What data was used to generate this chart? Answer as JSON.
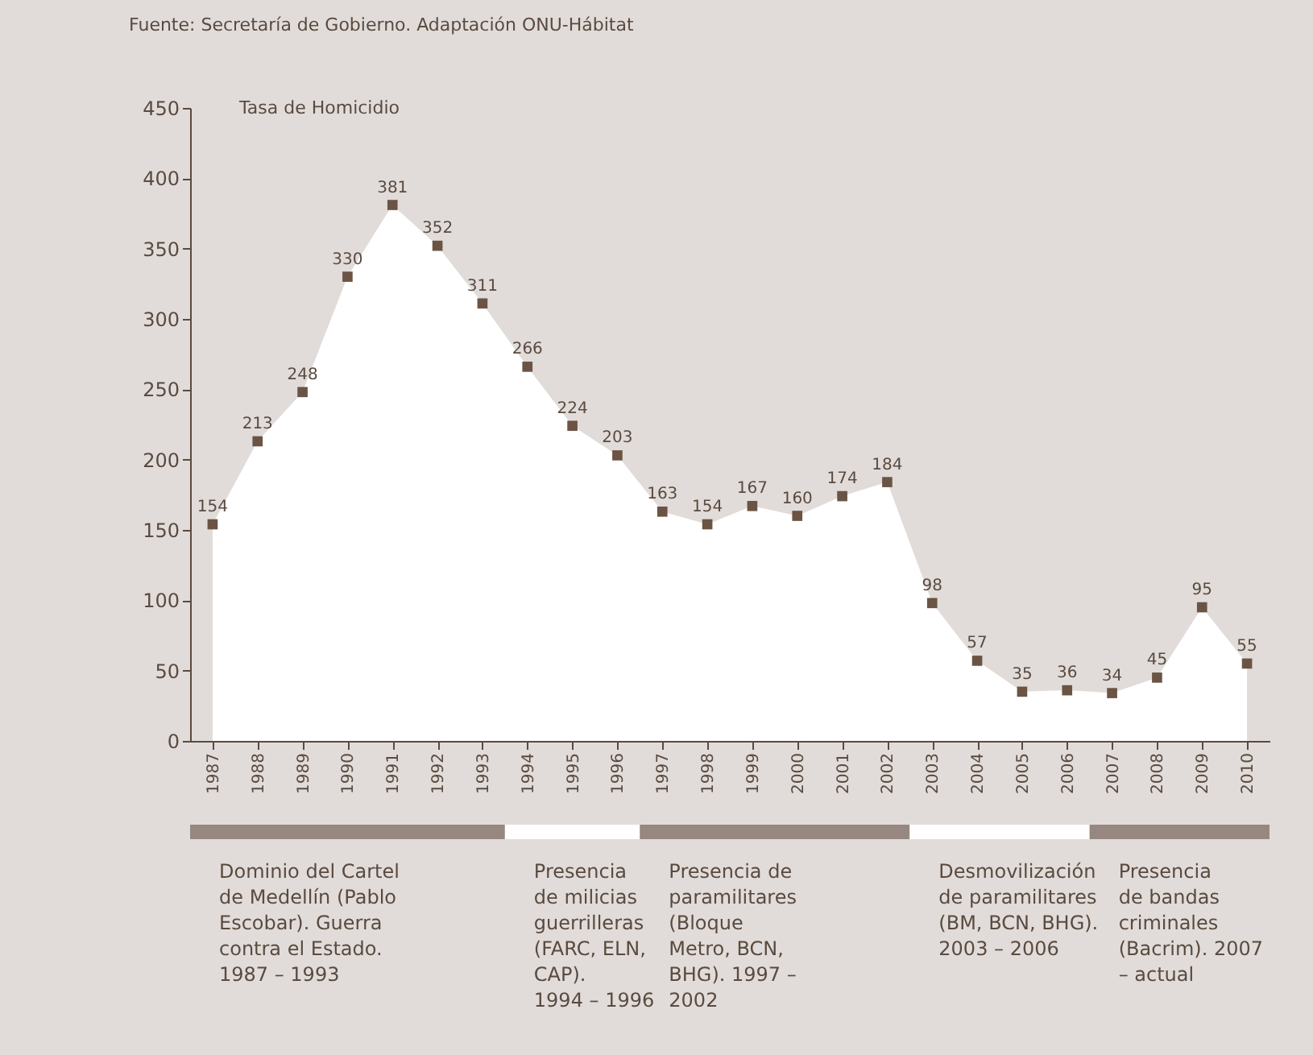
{
  "chart_data": {
    "type": "area",
    "ylabel": "Tasa de Homicidio",
    "annotations": [
      "Fuente: Secretaría de Gobierno. Adaptación ONU-Hábitat",
      "Dominio del Cartel\nde Medellín (Pablo\nEscobar). Guerra\ncontra el Estado.\n1987 – 1993",
      "Presencia\nde milicias\nguerrilleras\n(FARC, ELN,\nCAP).\n1994 – 1996",
      "Presencia de\nparamilitares\n(Bloque\nMetro, BCN,\nBHG). 1997 –\n2002",
      "Desmovilización\nde paramilitares\n(BM, BCN, BHG).\n2003 – 2006",
      "Presencia\nde bandas\ncriminales\n(Bacrim). 2007\n– actual"
    ],
    "categories": [
      "1987",
      "1988",
      "1989",
      "1990",
      "1991",
      "1992",
      "1993",
      "1994",
      "1995",
      "1996",
      "1997",
      "1998",
      "1999",
      "2000",
      "2001",
      "2002",
      "2003",
      "2004",
      "2005",
      "2006",
      "2007",
      "2008",
      "2009",
      "2010"
    ],
    "series": [
      {
        "color": "#6b5444",
        "values": [
          154,
          213,
          248,
          330,
          381,
          352,
          311,
          266,
          224,
          203,
          163,
          154,
          167,
          160,
          174,
          184,
          98,
          57,
          35,
          36,
          34,
          45,
          95,
          55
        ]
      }
    ],
    "ylim": [
      0,
      450
    ],
    "yticks": [
      0,
      50,
      100,
      150,
      200,
      250,
      300,
      350,
      400,
      450
    ],
    "marker": "square",
    "data_labels": true
  }
}
